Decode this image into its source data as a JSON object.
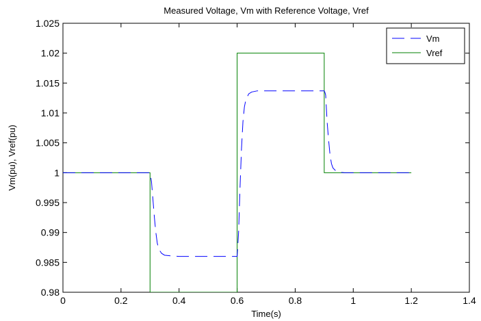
{
  "chart_data": {
    "type": "line",
    "title": "Measured Voltage, Vm with Reference Voltage, Vref",
    "xlabel": "Time(s)",
    "ylabel": "Vm(pu), Vref(pu)",
    "xlim": [
      0,
      1.4
    ],
    "ylim": [
      0.98,
      1.025
    ],
    "xticks": [
      0,
      0.2,
      0.4,
      0.6,
      0.8,
      1,
      1.2,
      1.4
    ],
    "xtick_labels": [
      "0",
      "0.2",
      "0.4",
      "0.6",
      "0.8",
      "1",
      "1.2",
      "1.4"
    ],
    "yticks": [
      0.98,
      0.985,
      0.99,
      0.995,
      1,
      1.005,
      1.01,
      1.015,
      1.02,
      1.025
    ],
    "ytick_labels": [
      "0.98",
      "0.985",
      "0.99",
      "0.995",
      "1",
      "1.005",
      "1.01",
      "1.015",
      "1.02",
      "1.025"
    ],
    "grid": false,
    "legend_position": "top-right",
    "series": [
      {
        "name": "Vm",
        "color": "#0000ff",
        "style": "dashed",
        "x": [
          0,
          0.295,
          0.3,
          0.305,
          0.31,
          0.315,
          0.32,
          0.325,
          0.33,
          0.34,
          0.35,
          0.37,
          0.4,
          0.6,
          0.602,
          0.605,
          0.61,
          0.615,
          0.62,
          0.625,
          0.63,
          0.64,
          0.65,
          0.67,
          0.7,
          0.9,
          0.902,
          0.905,
          0.91,
          0.915,
          0.92,
          0.925,
          0.93,
          0.94,
          0.95,
          0.97,
          1.0,
          1.2
        ],
        "y": [
          1.0,
          1.0,
          1.0,
          0.9985,
          0.9955,
          0.9925,
          0.99,
          0.9882,
          0.9872,
          0.9865,
          0.9862,
          0.9861,
          0.986,
          0.986,
          0.9875,
          0.99,
          0.9975,
          1.004,
          1.0085,
          1.011,
          1.0122,
          1.0132,
          1.0135,
          1.0137,
          1.0137,
          1.0137,
          1.0135,
          1.013,
          1.0085,
          1.0055,
          1.003,
          1.0015,
          1.0008,
          1.0003,
          1.0001,
          1.0,
          1.0,
          1.0
        ]
      },
      {
        "name": "Vref",
        "color": "#008000",
        "style": "solid",
        "x": [
          0,
          0.3,
          0.3,
          0.6,
          0.6,
          0.9,
          0.9,
          1.2
        ],
        "y": [
          1.0,
          1.0,
          0.98,
          0.98,
          1.02,
          1.02,
          1.0,
          1.0
        ]
      }
    ]
  }
}
